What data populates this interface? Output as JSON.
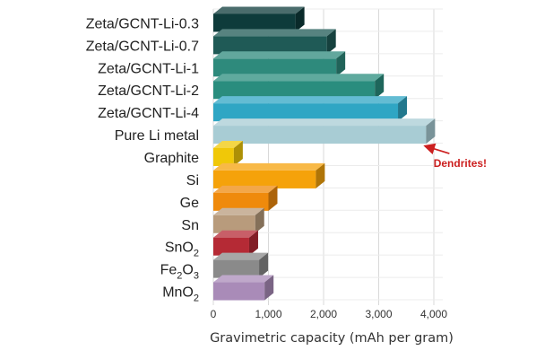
{
  "chart_data": {
    "type": "bar",
    "orientation": "horizontal",
    "categories": [
      "Zeta/GCNT-Li-0.3",
      "Zeta/GCNT-Li-0.7",
      "Zeta/GCNT-Li-1",
      "Zeta/GCNT-Li-2",
      "Zeta/GCNT-Li-4",
      "Pure Li metal",
      "Graphite",
      "Si",
      "Ge",
      "Sn",
      "SnO2",
      "Fe2O3",
      "MnO2"
    ],
    "category_label_parts": [
      [
        {
          "t": "Zeta/GCNT-Li-0.3"
        }
      ],
      [
        {
          "t": "Zeta/GCNT-Li-0.7"
        }
      ],
      [
        {
          "t": "Zeta/GCNT-Li-1"
        }
      ],
      [
        {
          "t": "Zeta/GCNT-Li-2"
        }
      ],
      [
        {
          "t": "Zeta/GCNT-Li-4"
        }
      ],
      [
        {
          "t": "Pure Li metal"
        }
      ],
      [
        {
          "t": "Graphite"
        }
      ],
      [
        {
          "t": "Si"
        }
      ],
      [
        {
          "t": "Ge"
        }
      ],
      [
        {
          "t": "Sn"
        }
      ],
      [
        {
          "t": "SnO"
        },
        {
          "t": "2",
          "sub": true
        }
      ],
      [
        {
          "t": "Fe"
        },
        {
          "t": "2",
          "sub": true
        },
        {
          "t": "O"
        },
        {
          "t": "3",
          "sub": true
        }
      ],
      [
        {
          "t": "MnO"
        },
        {
          "t": "2",
          "sub": true
        }
      ]
    ],
    "values": [
      1490,
      2060,
      2230,
      2930,
      3350,
      3860,
      372,
      1860,
      1000,
      760,
      650,
      830,
      930
    ],
    "colors": [
      "#0e3b3b",
      "#1f5a56",
      "#2e8a7c",
      "#2a8d7e",
      "#2fa6c4",
      "#a8ccd4",
      "#f0c808",
      "#f5a20a",
      "#ef8a0c",
      "#b89b7c",
      "#b52a35",
      "#8a8a8a",
      "#a98bb8"
    ],
    "xlim": [
      0,
      4000
    ],
    "xticks": [
      0,
      1000,
      2000,
      3000,
      4000
    ],
    "xtick_labels": [
      "0",
      "1,000",
      "2,000",
      "3,000",
      "4,000"
    ],
    "xlabel": "Gravimetric capacity (mAh per gram)",
    "title": "",
    "grid": true,
    "annotation": {
      "text": "Dendrites!",
      "target": "Pure Li metal",
      "color": "#cc1f1f"
    }
  }
}
